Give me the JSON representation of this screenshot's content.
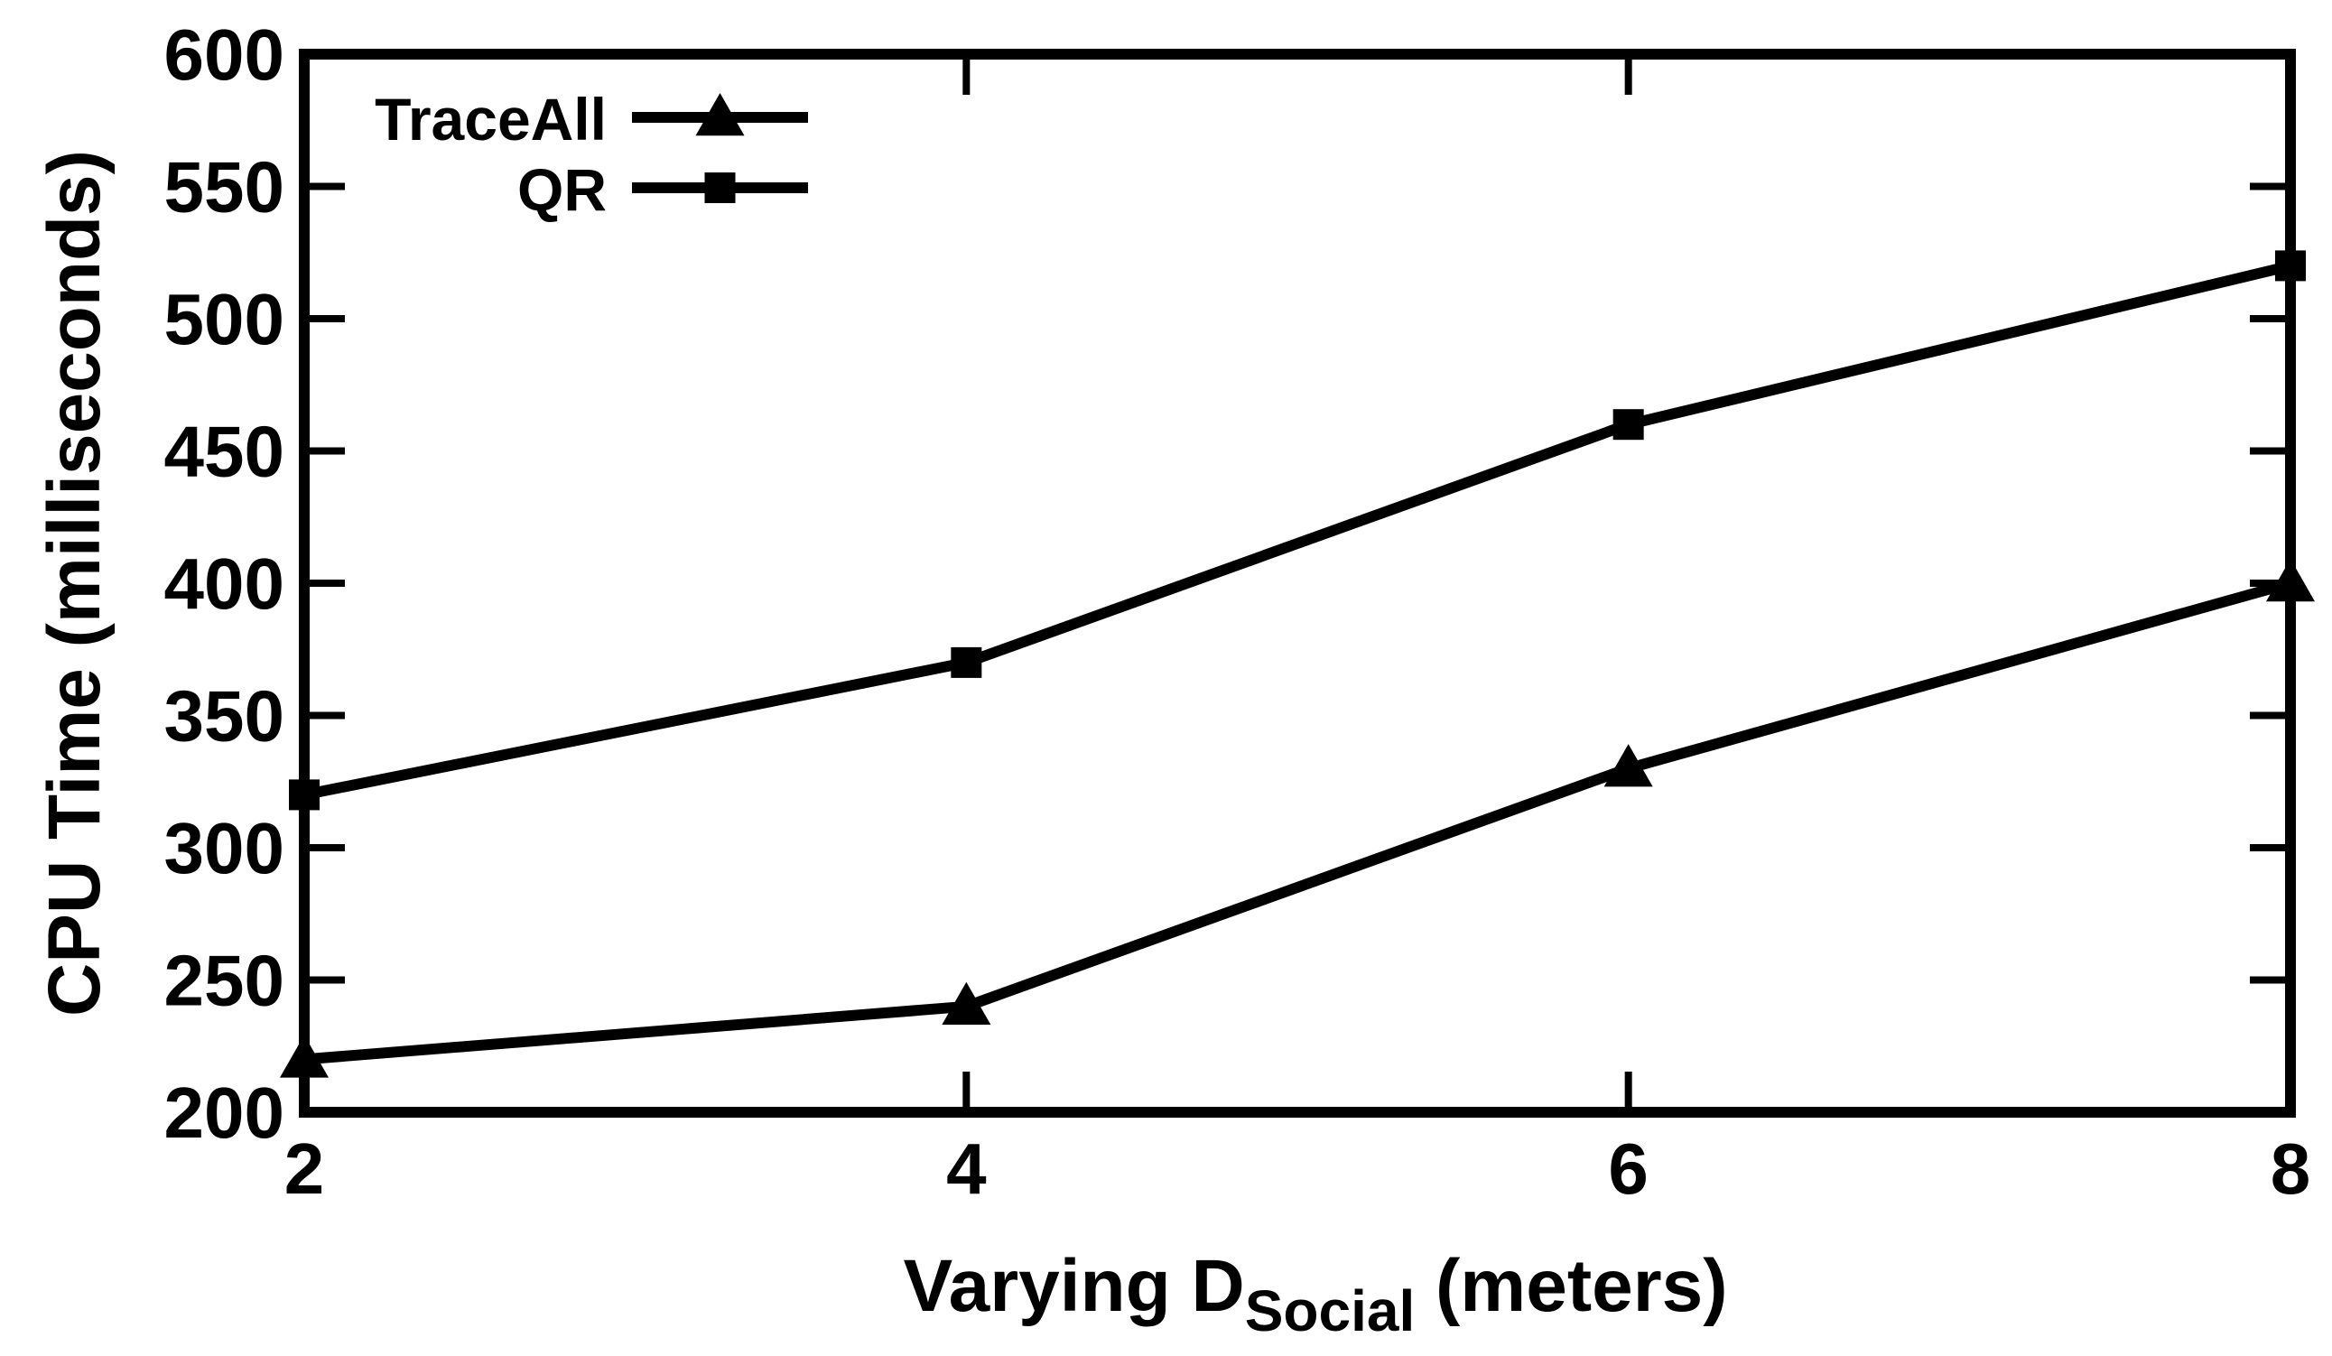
{
  "chart_data": {
    "type": "line",
    "title": "",
    "x": [
      2,
      4,
      6,
      8
    ],
    "x_tick_labels": [
      "2",
      "4",
      "6",
      "8"
    ],
    "xlim": [
      2,
      8
    ],
    "ylim": [
      200,
      600
    ],
    "y_ticks": [
      200,
      250,
      300,
      350,
      400,
      450,
      500,
      550,
      600
    ],
    "y_tick_labels": [
      "200",
      "250",
      "300",
      "350",
      "400",
      "450",
      "500",
      "550",
      "600"
    ],
    "xlabel": {
      "prefix": "Varying D",
      "subscript": "Social",
      "suffix": " (meters)"
    },
    "ylabel": "CPU Time (milliseconds)",
    "grid": false,
    "legend_position": "top-left",
    "series": [
      {
        "name": "TraceAll",
        "marker": "triangle",
        "values": [
          220,
          240,
          330,
          400
        ]
      },
      {
        "name": "QR",
        "marker": "square",
        "values": [
          320,
          370,
          460,
          520
        ]
      }
    ],
    "colors": {
      "line": "#000000",
      "background": "#ffffff"
    }
  }
}
